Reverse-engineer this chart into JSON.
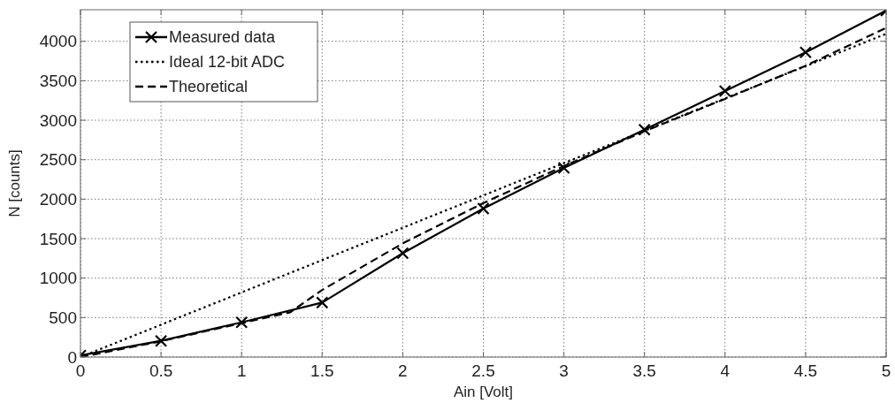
{
  "chart_data": {
    "type": "line",
    "xlabel": "Ain [Volt]",
    "ylabel": "N [counts]",
    "xlim": [
      0,
      5
    ],
    "ylim": [
      0,
      4400
    ],
    "xticks": [
      0,
      0.5,
      1,
      1.5,
      2,
      2.5,
      3,
      3.5,
      4,
      4.5,
      5
    ],
    "yticks": [
      0,
      500,
      1000,
      1500,
      2000,
      2500,
      3000,
      3500,
      4000
    ],
    "grid": true,
    "legend": "top left",
    "series": [
      {
        "name": "Measured data",
        "color": "#000000",
        "marker": "cross",
        "line_style": "solid",
        "x": [
          0,
          0.5,
          1,
          1.5,
          2,
          2.5,
          3,
          3.5,
          4,
          4.5,
          5
        ],
        "values": [
          20,
          205,
          440,
          690,
          1315,
          1880,
          2395,
          2880,
          3370,
          3860,
          4390
        ]
      },
      {
        "name": "Ideal 12-bit ADC",
        "color": "#000000",
        "marker": "none",
        "line_style": "dotted",
        "x": [
          0,
          5
        ],
        "values": [
          0,
          4095
        ]
      },
      {
        "name": "Theoretical",
        "color": "#000000",
        "marker": "none",
        "line_style": "dashed",
        "x": [
          0,
          0.5,
          1,
          1.3,
          1.5,
          2,
          2.5,
          3,
          3.5,
          4,
          4.5,
          5
        ],
        "values": [
          0,
          200,
          430,
          565,
          850,
          1440,
          1950,
          2420,
          2860,
          3270,
          3690,
          4170
        ]
      }
    ]
  }
}
